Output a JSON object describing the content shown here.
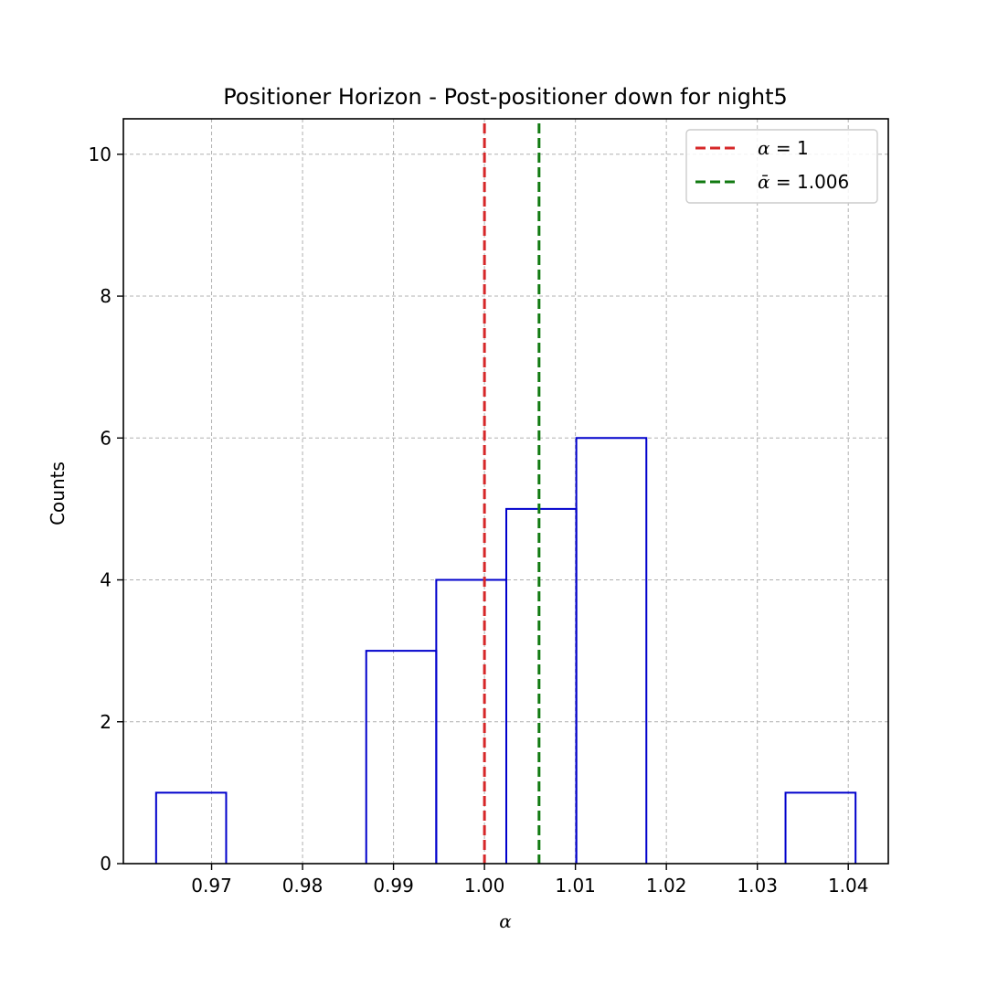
{
  "chart_data": {
    "type": "histogram",
    "title": "Positioner Horizon - Post-positioner down for night5",
    "xlabel": "α",
    "ylabel": "Counts",
    "xlim": [
      0.9603,
      1.0444
    ],
    "ylim": [
      0,
      10.5
    ],
    "x_ticks": [
      0.97,
      0.98,
      0.99,
      1.0,
      1.01,
      1.02,
      1.03,
      1.04
    ],
    "x_tick_labels": [
      "0.97",
      "0.98",
      "0.99",
      "1.00",
      "1.01",
      "1.02",
      "1.03",
      "1.04"
    ],
    "y_ticks": [
      0,
      2,
      4,
      6,
      8,
      10
    ],
    "y_tick_labels": [
      "0",
      "2",
      "4",
      "6",
      "8",
      "10"
    ],
    "grid": true,
    "bins": [
      {
        "x0": 0.9639,
        "x1": 0.9716,
        "count": 1
      },
      {
        "x0": 0.9716,
        "x1": 0.9793,
        "count": 0
      },
      {
        "x0": 0.9793,
        "x1": 0.987,
        "count": 0
      },
      {
        "x0": 0.987,
        "x1": 0.9947,
        "count": 3
      },
      {
        "x0": 0.9947,
        "x1": 1.0024,
        "count": 4
      },
      {
        "x0": 1.0024,
        "x1": 1.0101,
        "count": 5
      },
      {
        "x0": 1.0101,
        "x1": 1.0178,
        "count": 6
      },
      {
        "x0": 1.0178,
        "x1": 1.0255,
        "count": 0
      },
      {
        "x0": 1.0255,
        "x1": 1.0331,
        "count": 0
      },
      {
        "x0": 1.0331,
        "x1": 1.0408,
        "count": 1
      }
    ],
    "histogram_color": "#0000cc",
    "reference_lines": [
      {
        "name": "α = 1",
        "x": 1.0,
        "color": "#d62728",
        "style": "dashed"
      },
      {
        "name": "ᾱ = 1.006",
        "x": 1.006,
        "color": "#117a11",
        "style": "dashed"
      }
    ],
    "legend": {
      "position": "top-right",
      "entries": [
        {
          "label_symbol": "α",
          "label_rest": " = 1",
          "color": "#d62728"
        },
        {
          "label_symbol": "ᾱ",
          "label_rest": " = 1.006",
          "color": "#117a11"
        }
      ]
    }
  }
}
